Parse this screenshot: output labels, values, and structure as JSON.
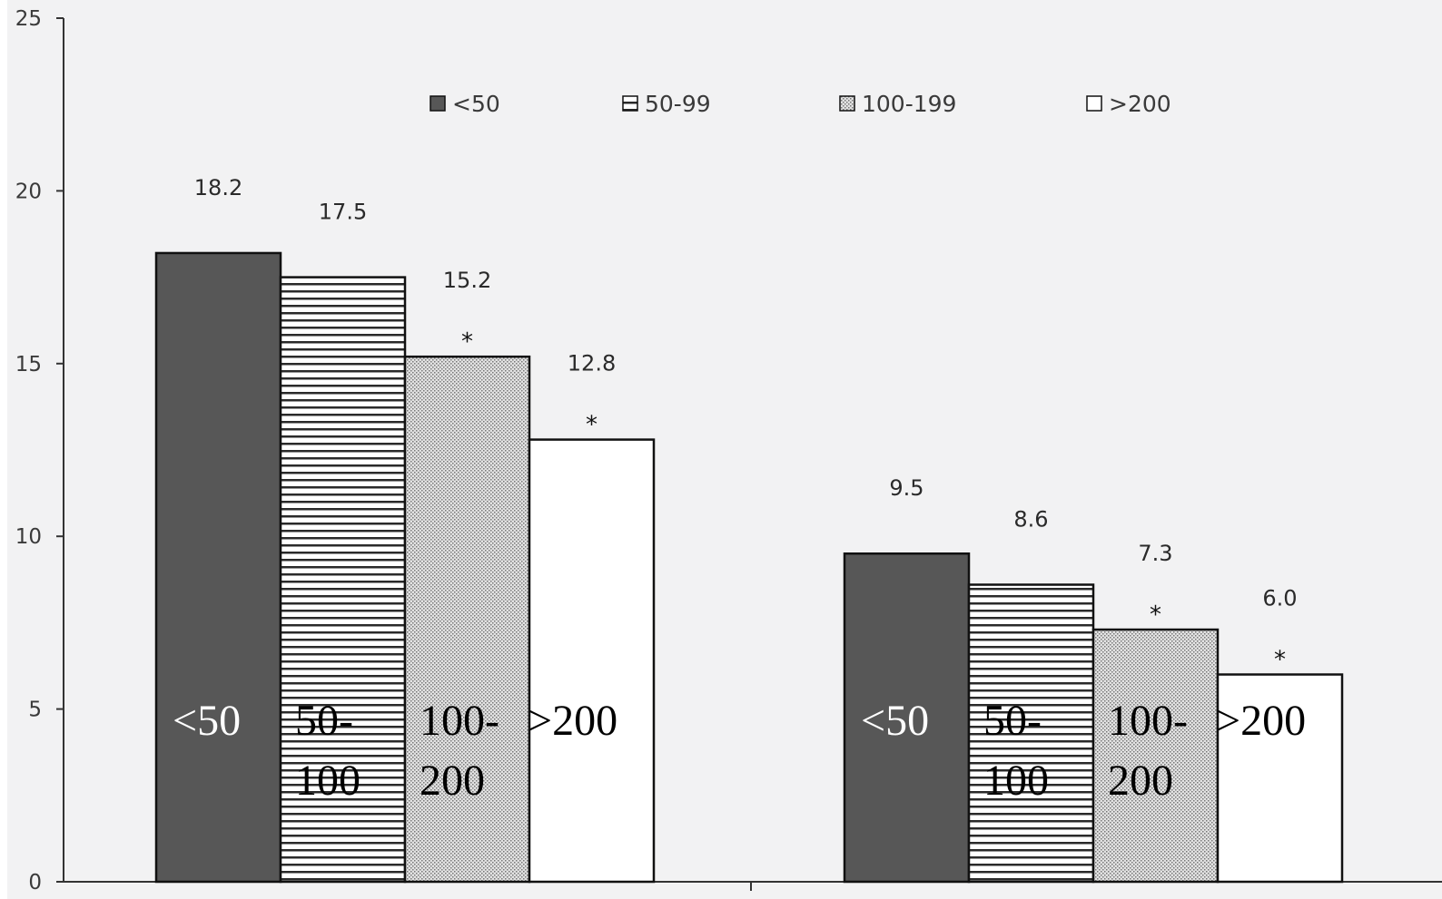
{
  "chart_data": {
    "type": "bar",
    "ylim": [
      0,
      25
    ],
    "yticks": [
      "0",
      "5",
      "10",
      "15",
      "20",
      "25"
    ],
    "grid": false,
    "legend_position": "top",
    "legend": [
      {
        "label": "<50",
        "pattern": "solid",
        "color": "#575757"
      },
      {
        "label": "50-99",
        "pattern": "horizontal-lines",
        "color": "#ffffff"
      },
      {
        "label": "100-199",
        "pattern": "dots",
        "color": "#d4d4d4"
      },
      {
        "label": ">200",
        "pattern": "empty",
        "color": "#ffffff"
      }
    ],
    "groups": [
      {
        "bars": [
          {
            "value": 18.2,
            "label": "18.2",
            "star": "",
            "text": [
              "<50"
            ]
          },
          {
            "value": 17.5,
            "label": "17.5",
            "star": "",
            "text": [
              "50-",
              "100"
            ]
          },
          {
            "value": 15.2,
            "label": "15.2",
            "star": "*",
            "text": [
              "100-",
              "200"
            ]
          },
          {
            "value": 12.8,
            "label": "12.8",
            "star": "*",
            "text": [
              ">200"
            ]
          }
        ]
      },
      {
        "bars": [
          {
            "value": 9.5,
            "label": "9.5",
            "star": "",
            "text": [
              "<50"
            ]
          },
          {
            "value": 8.6,
            "label": "8.6",
            "star": "",
            "text": [
              "50-",
              "100"
            ]
          },
          {
            "value": 7.3,
            "label": "7.3",
            "star": "*",
            "text": [
              "100-",
              "200"
            ]
          },
          {
            "value": 6.0,
            "label": "6.0",
            "star": "*",
            "text": [
              ">200"
            ]
          }
        ]
      }
    ],
    "colors": {
      "background": "#f2f2f3",
      "page_margin": "#ffffff",
      "axis": "#333333",
      "bar_stroke": "#111111",
      "overlay_text_dark": "#000000",
      "overlay_text_light": "#ffffff"
    }
  }
}
